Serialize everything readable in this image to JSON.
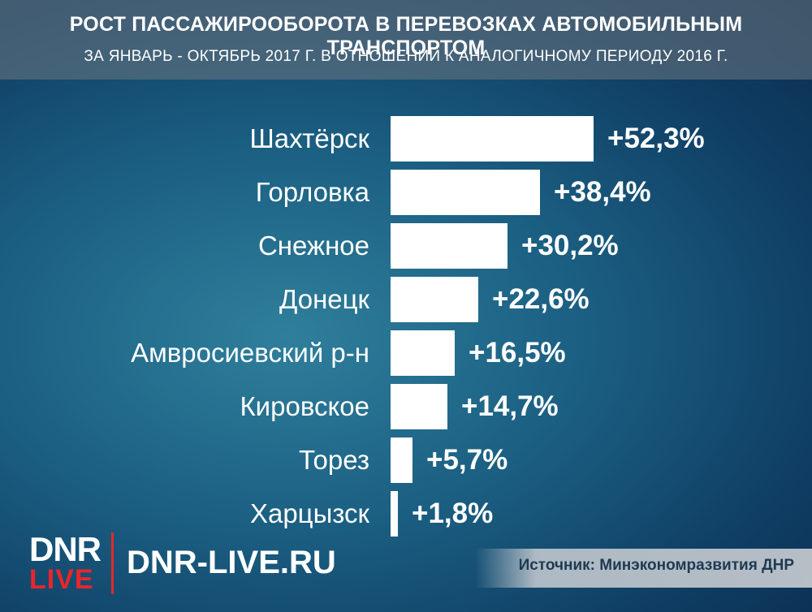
{
  "header": {
    "title": "РОСТ ПАССАЖИРООБОРОТА В ПЕРЕВОЗКАХ АВТОМОБИЛЬНЫМ ТРАНСПОРТОМ",
    "subtitle": "ЗА ЯНВАРЬ - ОКТЯБРЬ 2017 Г. В ОТНОШЕНИИ К АНАЛОГИЧНОМУ ПЕРИОДУ 2016 Г."
  },
  "chart_data": {
    "type": "bar",
    "orientation": "horizontal",
    "categories": [
      "Шахтёрск",
      "Горловка",
      "Снежное",
      "Донецк",
      "Амвросиевский р-н",
      "Кировское",
      "Торез",
      "Харцызск"
    ],
    "values": [
      52.3,
      38.4,
      30.2,
      22.6,
      16.5,
      14.7,
      5.7,
      1.8
    ],
    "value_labels": [
      "+52,3%",
      "+38,4%",
      "+30,2%",
      "+22,6%",
      "+16,5%",
      "+14,7%",
      "+5,7%",
      "+1,8%"
    ],
    "bar_color": "#ffffff",
    "xlim": [
      0,
      52.3
    ]
  },
  "footer": {
    "logo_top": "DNR",
    "logo_bottom": "LIVE",
    "site": "DNR-LIVE.RU",
    "source": "Источник: Минэкономразвития ДНР"
  },
  "colors": {
    "background": "#1b5f82",
    "accent": "#e8262b",
    "text": "#ffffff"
  }
}
